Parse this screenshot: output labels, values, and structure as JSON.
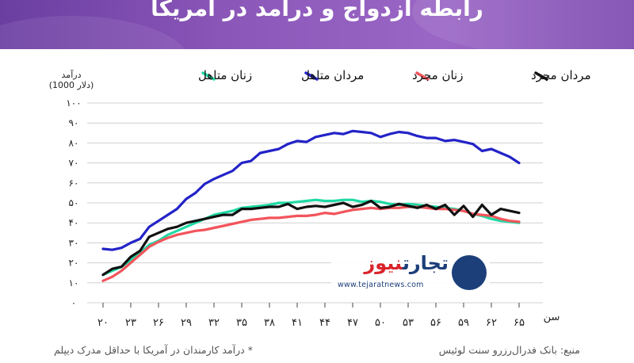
{
  "title": "رابطه ازدواج و درآمد در آمریکا",
  "footer": {
    "source": "منبع: بانک فدرال‌رزرو سنت لوئیس",
    "note": "* درآمد کارمندان در آمریکا با حداقل مدرک دیپلم"
  },
  "logo": {
    "name_part1": "تجارت",
    "name_part2": "نیوز",
    "url": "www.tejaratnews.com"
  },
  "colors": {
    "banner": "#8a56b8",
    "married_men": "#2323c8",
    "married_women": "#1fd9a4",
    "single_men": "#111111",
    "single_women": "#f2545b",
    "grid": "#d0d0d0"
  },
  "chart_data": {
    "type": "line",
    "title": "",
    "xlabel": "سن",
    "ylabel": "درآمد (1000 دلار)",
    "ylabel_line1": "درآمد",
    "ylabel_line2": "(1000 دلار)",
    "xlim": [
      20,
      65
    ],
    "ylim": [
      0,
      100
    ],
    "xticks": [
      20,
      23,
      26,
      29,
      32,
      35,
      38,
      41,
      44,
      47,
      50,
      53,
      56,
      59,
      62,
      65
    ],
    "xtick_labels": [
      "۲۰",
      "۲۳",
      "۲۶",
      "۲۹",
      "۳۲",
      "۳۵",
      "۳۸",
      "۴۱",
      "۴۴",
      "۴۷",
      "۵۰",
      "۵۳",
      "۵۶",
      "۵۹",
      "۶۲",
      "۶۵"
    ],
    "yticks": [
      0,
      10,
      20,
      30,
      40,
      50,
      60,
      70,
      80,
      90,
      100
    ],
    "ytick_labels": [
      "۰",
      "۱۰",
      "۲۰",
      "۳۰",
      "۴۰",
      "۵۰",
      "۶۰",
      "۷۰",
      "۸۰",
      "۹۰",
      "۱۰۰"
    ],
    "grid": true,
    "legend_position": "top",
    "x": [
      20,
      21,
      22,
      23,
      24,
      25,
      26,
      27,
      28,
      29,
      30,
      31,
      32,
      33,
      34,
      35,
      36,
      37,
      38,
      39,
      40,
      41,
      42,
      43,
      44,
      45,
      46,
      47,
      48,
      49,
      50,
      51,
      52,
      53,
      54,
      55,
      56,
      57,
      58,
      59,
      60,
      61,
      62,
      63,
      64,
      65
    ],
    "series": [
      {
        "name": "مردان متاهل",
        "key": "married_men",
        "values": [
          27,
          26.5,
          27.5,
          30,
          32,
          38,
          41,
          44,
          47,
          52,
          55,
          59.5,
          62,
          64,
          66,
          70,
          71,
          75,
          76,
          77,
          79.5,
          81,
          80.5,
          83,
          84,
          85,
          84.5,
          86,
          85.5,
          85,
          83,
          84.5,
          85.5,
          85,
          83.5,
          82.5,
          82.5,
          81,
          81.5,
          80.5,
          79.5,
          76,
          77,
          75,
          73,
          70
        ]
      },
      {
        "name": "زنان متاهل",
        "key": "married_women",
        "values": [
          14,
          16,
          18,
          21.5,
          25,
          29,
          31,
          34,
          36,
          38,
          40,
          42,
          44,
          45,
          46,
          47.5,
          48,
          48.5,
          49,
          50,
          50,
          50.5,
          51,
          51.5,
          51,
          51,
          51.5,
          51.5,
          50.5,
          51,
          50.5,
          49.5,
          49,
          49.5,
          49,
          48.5,
          48,
          47.5,
          47,
          46,
          44.5,
          43.5,
          42,
          41,
          40.5,
          40
        ]
      },
      {
        "name": "مردان مجرد",
        "key": "single_men",
        "values": [
          14,
          17,
          18,
          23,
          26,
          33,
          35,
          37,
          38,
          40,
          41,
          42,
          43,
          44,
          44,
          47,
          47,
          47.5,
          48,
          48,
          49.5,
          47,
          48,
          48.5,
          48,
          49,
          50,
          48,
          49,
          51,
          47.5,
          48,
          49.5,
          48.5,
          47.5,
          49,
          47,
          49,
          44,
          48.5,
          43,
          49,
          44,
          47,
          46,
          45
        ]
      },
      {
        "name": "زنان مجرد",
        "key": "single_women",
        "values": [
          11,
          13,
          16,
          20,
          24,
          28,
          30.5,
          32.5,
          34,
          35,
          36,
          36.5,
          37.5,
          38.5,
          39.5,
          40.5,
          41.5,
          42,
          42.5,
          42.5,
          43,
          43.5,
          43.5,
          44,
          45,
          44.5,
          45.5,
          46.5,
          47,
          47.5,
          47,
          47.5,
          47.5,
          48,
          48,
          47.5,
          47,
          47,
          46.5,
          46,
          44.5,
          44,
          43.5,
          42,
          41,
          40.5
        ]
      }
    ],
    "legend_order": [
      "single_men",
      "single_women",
      "married_men",
      "married_women"
    ]
  }
}
